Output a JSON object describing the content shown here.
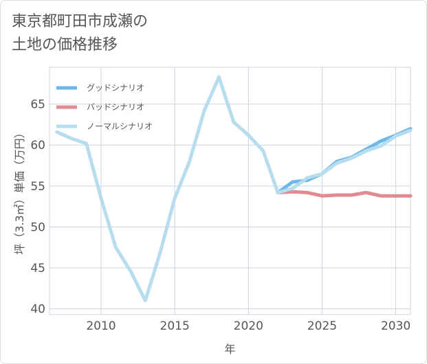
{
  "chart_data": {
    "type": "line",
    "title_lines": [
      "東京都町田市成瀬の",
      "土地の価格推移"
    ],
    "xlabel": "年",
    "ylabel": "坪（3.3㎡）単価（万円）",
    "xlim": [
      2006.5,
      2031
    ],
    "ylim": [
      39.3,
      69.5
    ],
    "xticks": [
      2010,
      2015,
      2020,
      2025,
      2030
    ],
    "yticks": [
      40,
      45,
      50,
      55,
      60,
      65
    ],
    "series": [
      {
        "name": "グッドシナリオ",
        "color": "#6cb8ea",
        "x": [
          2022,
          2023,
          2024,
          2025,
          2026,
          2027,
          2028,
          2029,
          2030,
          2031
        ],
        "y": [
          54.2,
          55.5,
          55.7,
          56.5,
          58.0,
          58.5,
          59.5,
          60.5,
          61.2,
          62.0
        ]
      },
      {
        "name": "バッドシナリオ",
        "color": "#e08a92",
        "x": [
          2022,
          2023,
          2024,
          2025,
          2026,
          2027,
          2028,
          2029,
          2030,
          2031
        ],
        "y": [
          54.2,
          54.3,
          54.2,
          53.8,
          53.9,
          53.9,
          54.2,
          53.8,
          53.8,
          53.8
        ]
      },
      {
        "name": "ノーマルシナリオ",
        "color": "#b7dced",
        "x": [
          2007,
          2008,
          2009,
          2010,
          2011,
          2012,
          2013,
          2014,
          2015,
          2016,
          2017,
          2018,
          2019,
          2020,
          2021,
          2022,
          2023,
          2024,
          2025,
          2026,
          2027,
          2028,
          2029,
          2030,
          2031
        ],
        "y": [
          61.6,
          60.8,
          60.2,
          53.5,
          47.5,
          44.6,
          41.0,
          46.8,
          53.5,
          58.0,
          64.2,
          68.3,
          62.8,
          61.2,
          59.3,
          54.2,
          54.7,
          56.0,
          56.5,
          57.8,
          58.4,
          59.3,
          59.9,
          61.1,
          61.8
        ]
      }
    ],
    "legend_position": "top-left",
    "grid": true
  }
}
